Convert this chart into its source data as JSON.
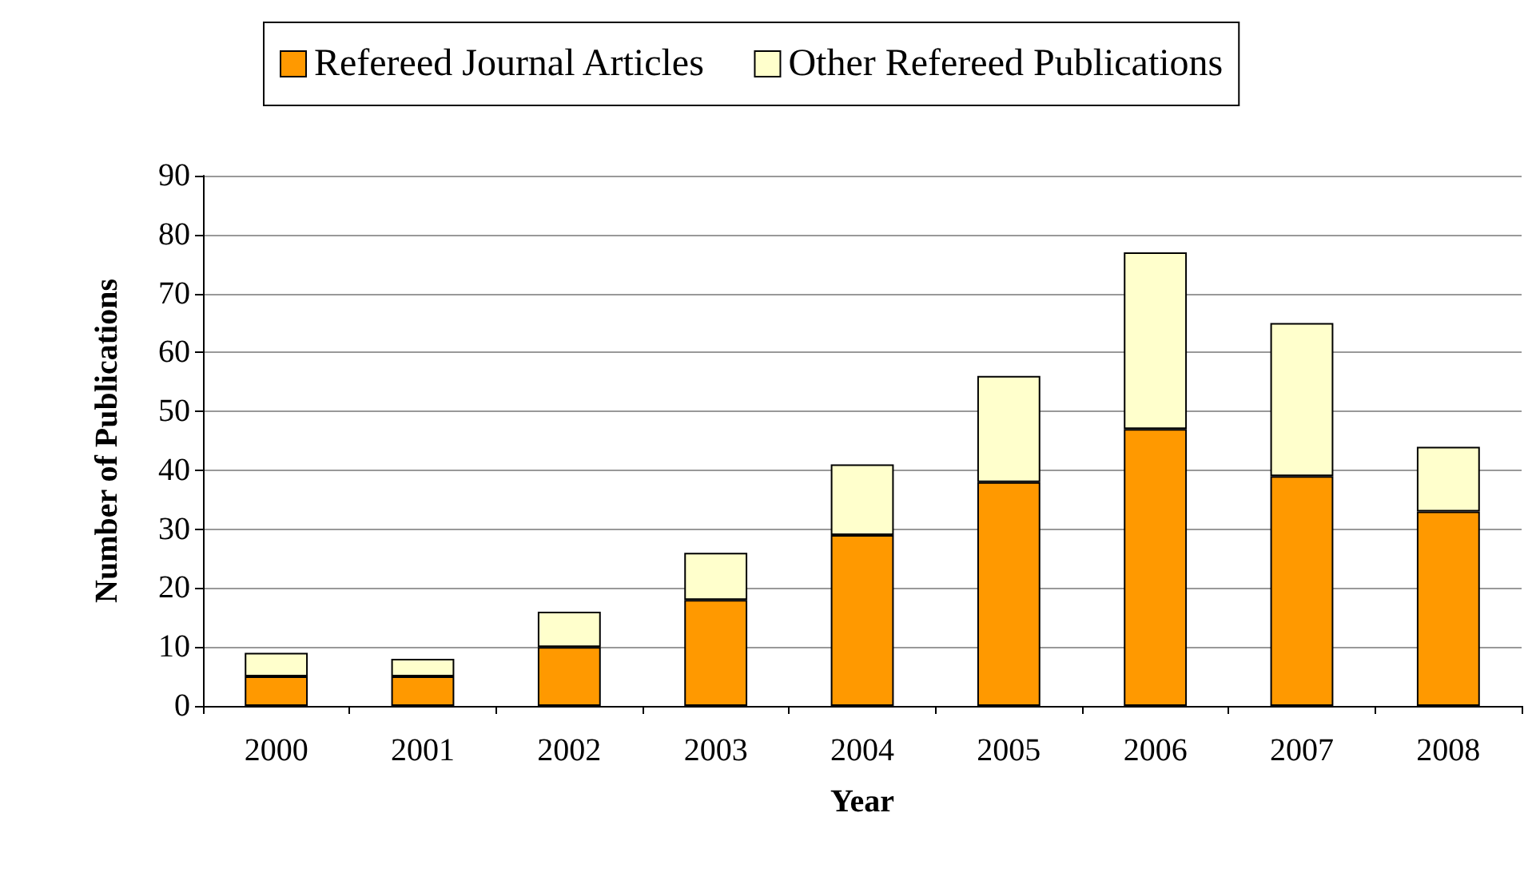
{
  "chart_data": {
    "type": "bar",
    "stacked": true,
    "xlabel": "Year",
    "ylabel": "Number of Publications",
    "categories": [
      "2000",
      "2001",
      "2002",
      "2003",
      "2004",
      "2005",
      "2006",
      "2007",
      "2008"
    ],
    "series": [
      {
        "name": "Refereed Journal Articles",
        "color": "#ff9900",
        "values": [
          5,
          5,
          10,
          18,
          29,
          38,
          47,
          39,
          33
        ]
      },
      {
        "name": "Other Refereed Publications",
        "color": "#ffffcc",
        "values": [
          4,
          3,
          6,
          8,
          12,
          18,
          30,
          26,
          11
        ]
      }
    ],
    "ylim": [
      0,
      90
    ],
    "yticks": [
      0,
      10,
      20,
      30,
      40,
      50,
      60,
      70,
      80,
      90
    ],
    "grid": "y",
    "legend": "top"
  }
}
